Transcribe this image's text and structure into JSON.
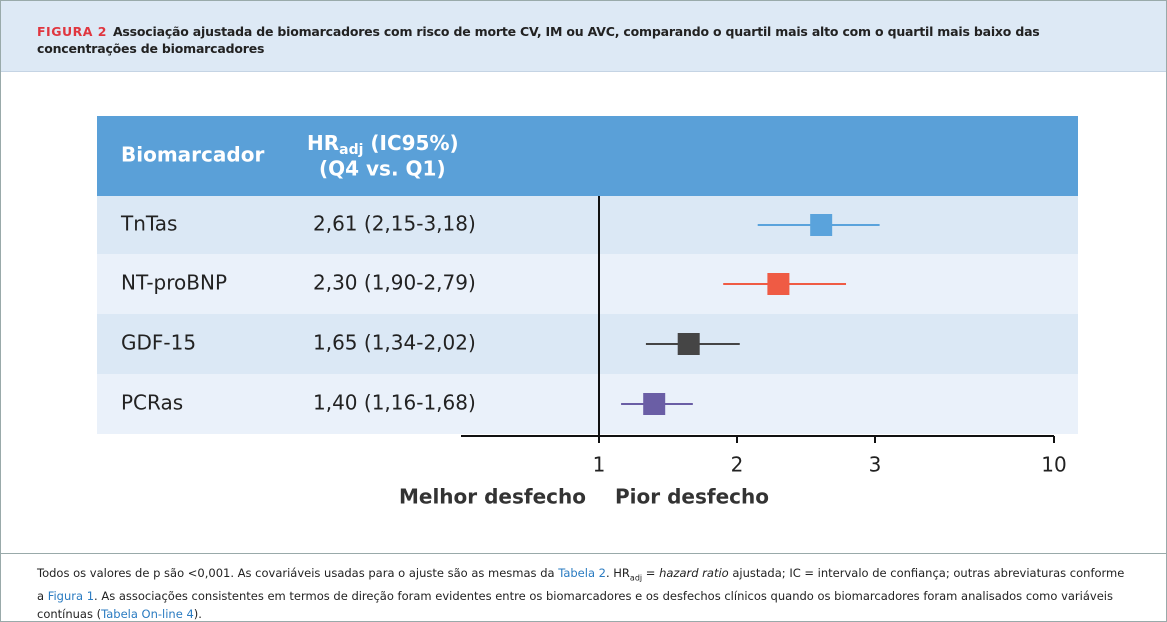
{
  "figure_label": "FIGURA 2",
  "footnote": [
    "Todos os valores de p são <0,001. As covariáveis usadas para o ajuste são as mesmas da ",
    "Tabela 2",
    ". HR",
    "adj",
    " = ",
    "hazard ratio",
    " ajustada; IC = intervalo de confiança; outras abreviaturas conforme a ",
    "Figura 1",
    ". As associações consistentes em termos de direção foram evidentes entre os biomarcadores e os desfechos clínicos quando os biomarcadores foram analisados como variáveis contínuas (",
    "Tabela On-line 4",
    ")."
  ],
  "chart_data": {
    "type": "forest",
    "title": "Associação ajustada de biomarcadores com risco de morte CV, IM ou AVC, comparando o quartil mais alto com o quartil mais baixo das concentrações de biomarcadores",
    "column_headers": {
      "biomarker": "Biomarcador",
      "hr_main": "HR",
      "hr_sub": "adj",
      "hr_rest": " (IC95%)",
      "hr_line2": "(Q4 vs. Q1)"
    },
    "categories": [
      "TnTas",
      "NT-proBNP",
      "GDF-15",
      "PCRas"
    ],
    "values": [
      2.61,
      2.3,
      1.65,
      1.4
    ],
    "lower": [
      2.15,
      1.9,
      1.34,
      1.16
    ],
    "upper": [
      3.18,
      2.79,
      2.02,
      1.68
    ],
    "value_labels": [
      "2,61 (2,15-3,18)",
      "2,30 (1,90-2,79)",
      "1,65 (1,34-2,02)",
      "1,40 (1,16-1,68)"
    ],
    "colors": [
      "#5aa3dc",
      "#ef5b44",
      "#454545",
      "#6a5ea5"
    ],
    "reference": 1,
    "xlim": [
      0,
      10
    ],
    "xticks": [
      1,
      2,
      3,
      10
    ],
    "x_labels": [
      "Melhor desfecho",
      "Pior desfecho"
    ]
  }
}
